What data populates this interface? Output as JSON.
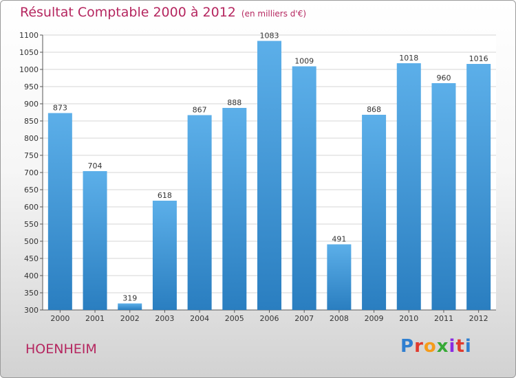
{
  "title": "Résultat Comptable 2000 à 2012",
  "unit_note": "(en milliers d'€)",
  "commune": "HOENHEIM",
  "logo": {
    "text": "Proxiti",
    "colors": [
      "#2f7fd0",
      "#e03a2e",
      "#f59b1a",
      "#36a936",
      "#8a2be2",
      "#e03a2e",
      "#2f7fd0"
    ]
  },
  "colors": {
    "bar_top": "#5cafe9",
    "bar_bottom": "#2a7ec0",
    "title": "#b5265f",
    "grid": "#d4d4d4"
  },
  "chart_data": {
    "type": "bar",
    "categories": [
      "2000",
      "2001",
      "2002",
      "2003",
      "2004",
      "2005",
      "2006",
      "2007",
      "2008",
      "2009",
      "2010",
      "2011",
      "2012"
    ],
    "values": [
      873,
      704,
      319,
      618,
      867,
      888,
      1083,
      1009,
      491,
      868,
      1018,
      960,
      1016
    ],
    "ylim": [
      300,
      1100
    ],
    "yticks": [
      300,
      350,
      400,
      450,
      500,
      550,
      600,
      650,
      700,
      750,
      800,
      850,
      900,
      950,
      1000,
      1050,
      1100
    ],
    "grid": true,
    "xlabel": "",
    "ylabel": ""
  }
}
